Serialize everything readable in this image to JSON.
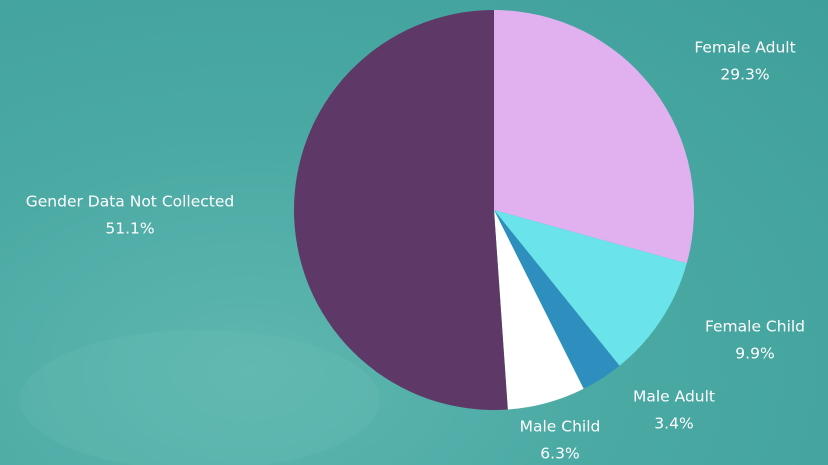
{
  "chart_data": {
    "type": "pie",
    "categories": [
      "Female Adult",
      "Female Child",
      "Male Adult",
      "Male Child",
      "Gender Data Not Collected"
    ],
    "values": [
      29.3,
      9.9,
      3.4,
      6.3,
      51.1
    ],
    "value_labels": [
      "29.3%",
      "9.9%",
      "3.4%",
      "6.3%",
      "51.1%"
    ],
    "colors": [
      "#e1b0ef",
      "#6ae3ea",
      "#2e8fbf",
      "#ffffff",
      "#5e3866"
    ]
  }
}
